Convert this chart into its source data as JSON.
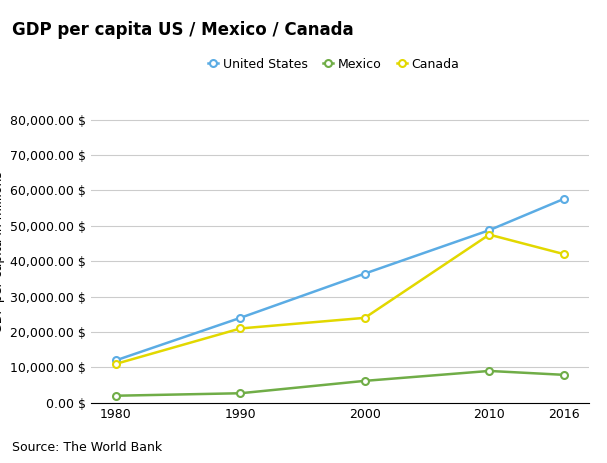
{
  "title": "GDP per capita US / Mexico / Canada",
  "ylabel": "GDP per capita in millions",
  "source": "Source: The World Bank",
  "years": [
    1980,
    1990,
    2000,
    2010,
    2016
  ],
  "us_values": [
    12000,
    24000,
    36500,
    48750,
    57600
  ],
  "mexico_values": [
    2000,
    2700,
    6200,
    9000,
    7900
  ],
  "canada_values": [
    11000,
    21000,
    24000,
    47500,
    42000
  ],
  "us_color": "#5BACE4",
  "mexico_color": "#70AD47",
  "canada_color": "#E2D800",
  "us_label": "United States",
  "mexico_label": "Mexico",
  "canada_label": "Canada",
  "ylim": [
    0,
    85000
  ],
  "yticks": [
    0,
    10000,
    20000,
    30000,
    40000,
    50000,
    60000,
    70000,
    80000
  ],
  "background_color": "#FFFFFF",
  "grid_color": "#CCCCCC",
  "title_fontsize": 12,
  "label_fontsize": 9,
  "tick_fontsize": 9,
  "legend_fontsize": 9,
  "source_fontsize": 9
}
